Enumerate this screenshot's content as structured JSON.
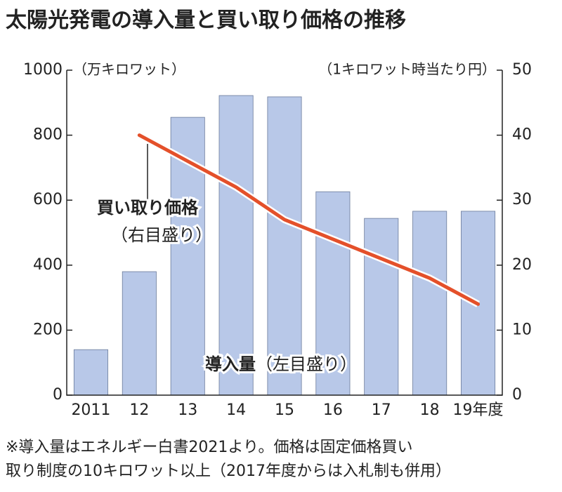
{
  "chart_data": {
    "type": "bar",
    "title": "太陽光発電の導入量と買い取り価格の推移",
    "y_label": "（万キロワット）",
    "y2_label": "（1キロワット時当たり円）",
    "categories": [
      "2011",
      "12",
      "13",
      "14",
      "15",
      "16",
      "17",
      "18",
      "19年度"
    ],
    "series": [
      {
        "name": "導入量",
        "type": "bar",
        "color": "#b8c8e8",
        "values": [
          140,
          380,
          855,
          922,
          918,
          626,
          544,
          566,
          566
        ]
      },
      {
        "name": "買い取り価格",
        "type": "line",
        "axis": "y2",
        "color": "#e4502a",
        "values": [
          null,
          40,
          36,
          32,
          27,
          24,
          21,
          18,
          14
        ]
      }
    ],
    "annotations": [
      "（右目盛り）",
      "（左目盛り）"
    ],
    "ylim": [
      0,
      1000
    ],
    "yticks": [
      0,
      200,
      400,
      600,
      800,
      1000
    ],
    "y2lim": [
      0,
      50
    ],
    "y2ticks": [
      0,
      10,
      20,
      30,
      40,
      50
    ],
    "notes": [
      "※導入量はエネルギー白書2021より。価格は固定価格買い",
      "取り制度の10キロワット以上（2017年度からは入札制も併用）"
    ]
  }
}
